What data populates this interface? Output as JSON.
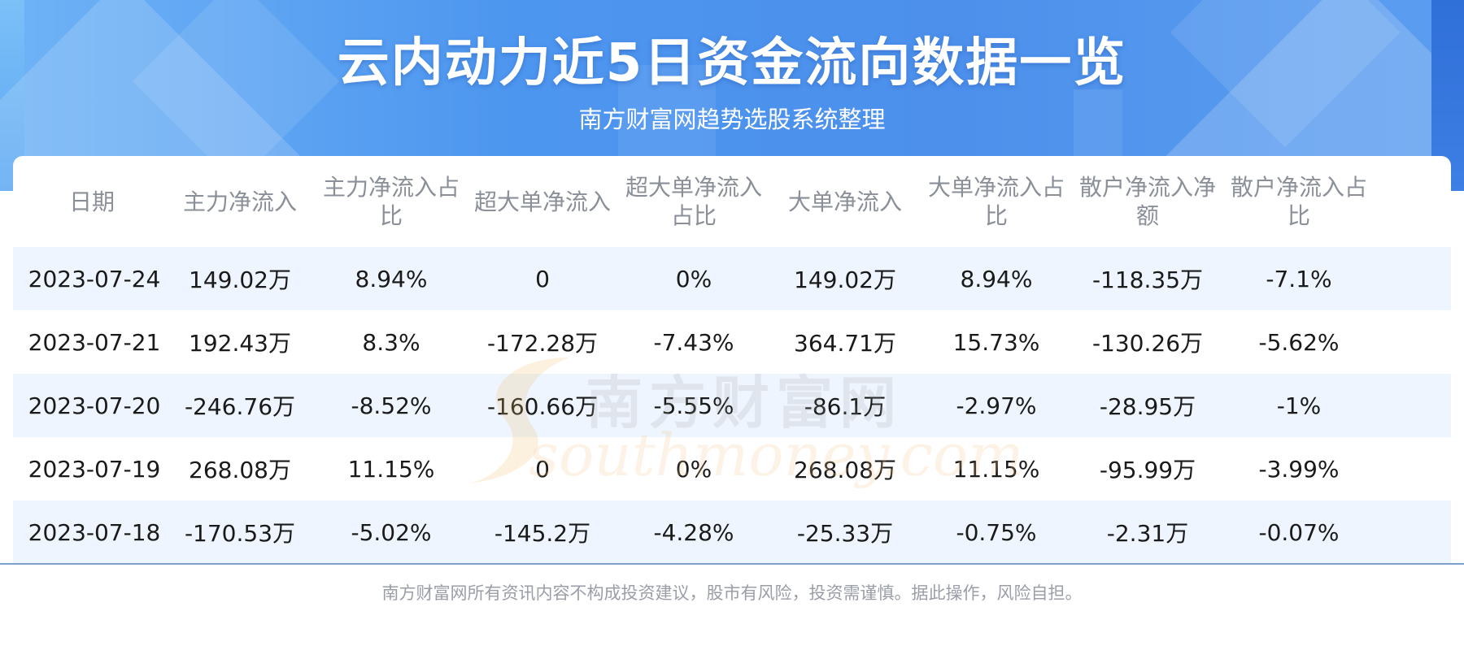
{
  "header": {
    "title": "云内动力近5日资金流向数据一览",
    "subtitle": "南方财富网趋势选股系统整理"
  },
  "table": {
    "columns": [
      "日期",
      "主力净流入",
      "主力净流入占比",
      "超大单净流入",
      "超大单净流入占比",
      "大单净流入",
      "大单净流入占比",
      "散户净流入净额",
      "散户净流入占比"
    ],
    "rows": [
      [
        "2023-07-24",
        "149.02万",
        "8.94%",
        "0",
        "0%",
        "149.02万",
        "8.94%",
        "-118.35万",
        "-7.1%"
      ],
      [
        "2023-07-21",
        "192.43万",
        "8.3%",
        "-172.28万",
        "-7.43%",
        "364.71万",
        "15.73%",
        "-130.26万",
        "-5.62%"
      ],
      [
        "2023-07-20",
        "-246.76万",
        "-8.52%",
        "-160.66万",
        "-5.55%",
        "-86.1万",
        "-2.97%",
        "-28.95万",
        "-1%"
      ],
      [
        "2023-07-19",
        "268.08万",
        "11.15%",
        "0",
        "0%",
        "268.08万",
        "11.15%",
        "-95.99万",
        "-3.99%"
      ],
      [
        "2023-07-18",
        "-170.53万",
        "-5.02%",
        "-145.2万",
        "-4.28%",
        "-25.33万",
        "-0.75%",
        "-2.31万",
        "-0.07%"
      ]
    ]
  },
  "watermark": {
    "cn": "南方财富网",
    "en": "southmoney.com"
  },
  "footer": {
    "disclaimer": "南方财富网所有资讯内容不构成投资建议，股市有风险，投资需谨慎。据此操作，风险自担。"
  },
  "colors": {
    "banner_blue": "#4d96ef",
    "header_text": "#8a8f98",
    "alt_row": "#eef5fe",
    "bottom_line": "#7b9fc6"
  }
}
